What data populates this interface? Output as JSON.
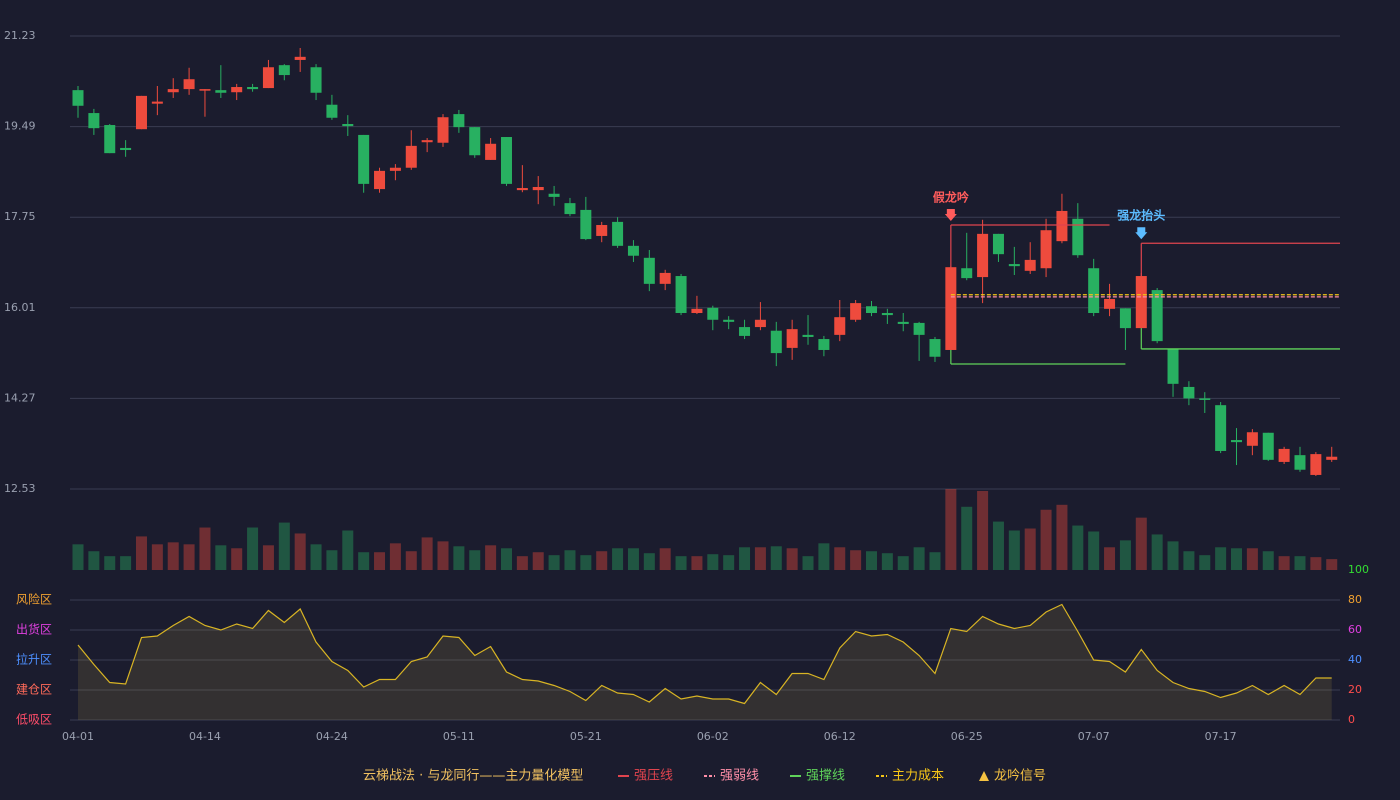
{
  "chart_data": {
    "type": "candlestick",
    "categories": [
      "04-01",
      null,
      null,
      null,
      null,
      null,
      null,
      null,
      "04-14",
      null,
      null,
      null,
      null,
      null,
      null,
      null,
      "04-24",
      null,
      null,
      null,
      null,
      null,
      null,
      null,
      "05-11",
      null,
      null,
      null,
      null,
      null,
      null,
      null,
      "05-21",
      null,
      null,
      null,
      null,
      null,
      null,
      null,
      "06-02",
      null,
      null,
      null,
      null,
      null,
      null,
      null,
      "06-12",
      null,
      null,
      null,
      null,
      null,
      null,
      null,
      "06-25",
      null,
      null,
      null,
      null,
      null,
      null,
      null,
      "07-07",
      null,
      null,
      null,
      null,
      null,
      null,
      null,
      "07-17",
      null,
      null,
      null,
      null,
      null,
      null,
      null
    ],
    "open": [
      20.19,
      19.75,
      19.52,
      19.08,
      19.44,
      19.93,
      20.15,
      20.21,
      20.18,
      20.19,
      20.15,
      20.25,
      20.23,
      20.67,
      20.77,
      20.63,
      19.91,
      19.54,
      19.33,
      18.29,
      18.64,
      18.7,
      19.19,
      19.18,
      19.73,
      19.48,
      18.85,
      19.29,
      18.27,
      18.27,
      18.2,
      18.02,
      17.89,
      17.39,
      17.66,
      17.2,
      16.97,
      16.47,
      16.62,
      15.91,
      16.01,
      15.78,
      15.64,
      15.64,
      15.57,
      15.24,
      15.49,
      15.41,
      15.49,
      15.78,
      16.04,
      15.91,
      15.74,
      15.72,
      15.41,
      15.2,
      16.77,
      16.6,
      17.43,
      16.85,
      16.72,
      16.77,
      17.29,
      17.72,
      16.77,
      15.99,
      16.0,
      15.62,
      16.35,
      15.22,
      14.49,
      14.27,
      14.14,
      13.47,
      13.36,
      13.61,
      13.05,
      13.18,
      12.8,
      13.09
    ],
    "close": [
      19.89,
      19.46,
      18.98,
      19.04,
      20.08,
      19.97,
      20.21,
      20.4,
      20.21,
      20.14,
      20.25,
      20.21,
      20.63,
      20.48,
      20.83,
      20.14,
      19.66,
      19.5,
      18.39,
      18.64,
      18.7,
      19.12,
      19.23,
      19.67,
      19.48,
      18.94,
      19.16,
      18.39,
      18.31,
      18.33,
      18.14,
      17.81,
      17.33,
      17.6,
      17.2,
      17.01,
      16.47,
      16.68,
      15.91,
      15.99,
      15.78,
      15.74,
      15.47,
      15.78,
      15.14,
      15.6,
      15.45,
      15.2,
      15.83,
      16.1,
      15.91,
      15.87,
      15.7,
      15.49,
      15.07,
      16.79,
      16.58,
      17.43,
      17.04,
      16.81,
      16.93,
      17.5,
      17.87,
      17.02,
      15.91,
      16.18,
      15.62,
      16.62,
      15.37,
      14.55,
      14.27,
      14.24,
      13.26,
      13.43,
      13.62,
      13.09,
      13.3,
      12.9,
      13.2,
      13.15
    ],
    "high": [
      20.27,
      19.83,
      19.54,
      19.23,
      20.08,
      20.27,
      20.42,
      20.62,
      20.21,
      20.67,
      20.31,
      20.31,
      20.77,
      20.69,
      21.0,
      20.69,
      20.1,
      19.71,
      19.33,
      18.7,
      18.77,
      19.42,
      19.27,
      19.73,
      19.81,
      19.48,
      19.27,
      19.29,
      18.75,
      18.54,
      18.35,
      18.12,
      18.14,
      17.66,
      17.75,
      17.31,
      17.12,
      16.74,
      16.66,
      16.24,
      16.05,
      15.85,
      15.78,
      16.12,
      15.74,
      15.78,
      15.87,
      15.47,
      16.16,
      16.16,
      16.14,
      15.99,
      15.91,
      15.74,
      15.45,
      16.81,
      17.45,
      17.7,
      17.43,
      17.18,
      17.27,
      17.72,
      18.2,
      18.02,
      16.95,
      16.47,
      16.0,
      16.68,
      16.39,
      15.22,
      14.6,
      14.39,
      14.2,
      13.7,
      13.68,
      13.61,
      13.34,
      13.34,
      13.24,
      13.34
    ],
    "low": [
      19.66,
      19.33,
      18.98,
      18.91,
      19.44,
      19.71,
      20.04,
      20.1,
      19.68,
      20.04,
      20.0,
      20.16,
      20.23,
      20.38,
      20.54,
      20.0,
      19.62,
      19.31,
      18.22,
      18.22,
      18.46,
      18.66,
      19.0,
      19.1,
      19.37,
      18.89,
      18.85,
      18.35,
      18.23,
      18.0,
      17.97,
      17.77,
      17.31,
      17.27,
      17.16,
      16.89,
      16.33,
      16.35,
      15.87,
      15.89,
      15.58,
      15.6,
      15.41,
      15.58,
      14.89,
      15.01,
      15.3,
      15.08,
      15.37,
      15.74,
      15.85,
      15.7,
      15.56,
      14.99,
      14.97,
      15.2,
      16.54,
      16.1,
      16.89,
      16.64,
      16.66,
      16.6,
      17.25,
      16.97,
      15.85,
      15.85,
      15.2,
      15.62,
      15.33,
      14.3,
      14.14,
      13.99,
      13.22,
      12.99,
      13.18,
      13.07,
      13.01,
      12.86,
      12.78,
      13.05
    ],
    "volume": [
      26,
      19,
      14,
      14,
      34,
      26,
      28,
      26,
      43,
      25,
      22,
      43,
      25,
      48,
      37,
      26,
      20,
      40,
      18,
      18,
      27,
      19,
      33,
      29,
      24,
      20,
      25,
      22,
      14,
      18,
      15,
      20,
      15,
      19,
      22,
      22,
      17,
      22,
      14,
      14,
      16,
      15,
      23,
      23,
      24,
      22,
      14,
      27,
      23,
      20,
      19,
      17,
      14,
      23,
      18,
      82,
      64,
      80,
      49,
      40,
      42,
      61,
      66,
      45,
      39,
      23,
      30,
      53,
      36,
      29,
      19,
      15,
      23,
      22,
      22,
      19,
      14,
      14,
      13,
      11
    ],
    "up_color": "#ee4b3d",
    "down_color": "#28b061",
    "ylim": [
      12.53,
      21.23
    ],
    "yticks": [
      12.53,
      14.27,
      16.01,
      17.75,
      19.49,
      21.23
    ],
    "grid": true,
    "levels": [
      {
        "name": "强压线",
        "color": "#e0444e",
        "dash": false,
        "segments": [
          {
            "start": 55,
            "end": 65,
            "value": 17.6
          },
          {
            "start": 67,
            "end": 79,
            "value": 17.25
          }
        ]
      },
      {
        "name": "强弱线",
        "color": "#ff8fa8",
        "dash": true,
        "segments": [
          {
            "start": 55,
            "end": 79,
            "value": 16.22
          }
        ]
      },
      {
        "name": "强撑线",
        "color": "#5fd35a",
        "dash": false,
        "segments": [
          {
            "start": 55,
            "end": 66,
            "value": 14.93
          },
          {
            "start": 67,
            "end": 79,
            "value": 15.22
          }
        ]
      },
      {
        "name": "主力成本",
        "color": "#f5c518",
        "dash": true,
        "segments": [
          {
            "start": 55,
            "end": 79,
            "value": 16.26
          }
        ]
      }
    ],
    "signals": {
      "name": "龙吟信号",
      "color": "#f5c242",
      "items": [
        {
          "index": 55,
          "label": "假龙吟",
          "color": "#ff5c5c"
        },
        {
          "index": 67,
          "label": "强龙抬头",
          "color": "#5cbcff"
        }
      ]
    },
    "indicator": {
      "ylim": [
        0,
        100
      ],
      "yticks": [
        0,
        20,
        40,
        60,
        80,
        100
      ],
      "tick_colors": [
        "#ff4d4d",
        "#ff4d4d",
        "#4d8fff",
        "#e040e0",
        "#f0a030",
        "#33dd33"
      ],
      "zone_labels": [
        "低吸区",
        "建仓区",
        "拉升区",
        "出货区",
        "风险区"
      ],
      "zone_colors": [
        "#ff4d6a",
        "#ff6a5a",
        "#4d8fff",
        "#e040e0",
        "#f0a030"
      ],
      "color": "#d8b424",
      "values": [
        50,
        37,
        25,
        24,
        55,
        56,
        63,
        69,
        63,
        60,
        64,
        61,
        73,
        65,
        74,
        52,
        39,
        33,
        22,
        27,
        27,
        39,
        42,
        56,
        55,
        43,
        49,
        32,
        27,
        26,
        23,
        19,
        13,
        23,
        18,
        17,
        12,
        21,
        14,
        16,
        14,
        14,
        11,
        25,
        17,
        31,
        31,
        27,
        48,
        59,
        56,
        57,
        52,
        43,
        31,
        61,
        59,
        69,
        64,
        61,
        63,
        72,
        77,
        59,
        40,
        39,
        32,
        47,
        33,
        25,
        21,
        19,
        15,
        18,
        23,
        17,
        23,
        17,
        28,
        28
      ]
    },
    "title": "云梯战法 · 与龙同行——主力量化模型"
  }
}
